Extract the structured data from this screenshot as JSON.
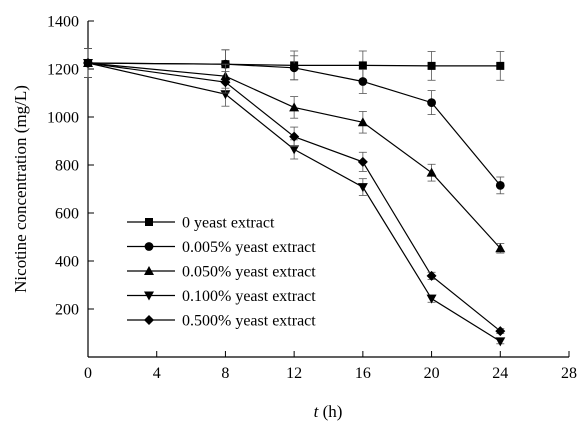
{
  "chart_data": {
    "type": "line",
    "title": "",
    "xlabel_italic": "t",
    "xlabel_rest": " (h)",
    "ylabel": "Nicotine concentration (mg/L)",
    "xlim": [
      0,
      28
    ],
    "ylim": [
      0,
      1400
    ],
    "x_ticks": [
      0,
      4,
      8,
      12,
      16,
      20,
      24,
      28
    ],
    "y_ticks": [
      200,
      400,
      600,
      800,
      1000,
      1200,
      1400
    ],
    "x_tick_labels": [
      "0",
      "4",
      "8",
      "12",
      "16",
      "20",
      "24",
      "28"
    ],
    "y_tick_labels": [
      "200",
      "400",
      "600",
      "800",
      "1000",
      "1200",
      "1400"
    ],
    "grid": false,
    "legend_position": "bottom-left",
    "x": [
      0,
      8,
      12,
      16,
      20,
      24
    ],
    "series": [
      {
        "name": "0 yeast extract",
        "marker": "square",
        "values": [
          1225,
          1220,
          1215,
          1215,
          1213,
          1213
        ],
        "errors": [
          60,
          60,
          60,
          60,
          60,
          60
        ]
      },
      {
        "name": "0.005% yeast extract",
        "marker": "circle",
        "values": [
          1225,
          1220,
          1205,
          1148,
          1060,
          715
        ],
        "errors": [
          60,
          60,
          50,
          50,
          50,
          35
        ]
      },
      {
        "name": "0.050% yeast extract",
        "marker": "triangle-up",
        "values": [
          1225,
          1170,
          1040,
          978,
          768,
          453
        ],
        "errors": [
          60,
          50,
          45,
          45,
          35,
          20
        ]
      },
      {
        "name": "0.100% yeast extract",
        "marker": "triangle-down",
        "values": [
          1225,
          1095,
          865,
          708,
          243,
          65
        ],
        "errors": [
          60,
          50,
          40,
          35,
          15,
          10
        ]
      },
      {
        "name": "0.500% yeast extract",
        "marker": "diamond",
        "values": [
          1225,
          1145,
          918,
          813,
          338,
          108
        ],
        "errors": [
          60,
          45,
          40,
          40,
          15,
          10
        ]
      }
    ]
  }
}
